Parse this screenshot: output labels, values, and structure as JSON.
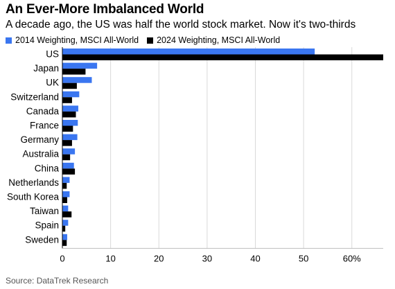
{
  "header": {
    "title": "An Ever-More Imbalanced World",
    "subtitle": "A decade ago, the US was half the world stock market. Now it's two-thirds"
  },
  "footer": {
    "source": "Source: DataTrek Research"
  },
  "colors": {
    "series_2014": "#3a76f0",
    "series_2024": "#000000",
    "grid": "#d9d9d9"
  },
  "chart_data": {
    "type": "bar",
    "orientation": "horizontal",
    "title": "An Ever-More Imbalanced World",
    "subtitle": "A decade ago, the US was half the world stock market. Now it's two-thirds",
    "categories": [
      "US",
      "Japan",
      "UK",
      "Switzerland",
      "Canada",
      "France",
      "Germany",
      "Australia",
      "China",
      "Netherlands",
      "South Korea",
      "Taiwan",
      "Spain",
      "Sweden"
    ],
    "series": [
      {
        "name": "2014 Weighting, MSCI All-World",
        "values": [
          52.3,
          7.2,
          6.1,
          3.5,
          3.3,
          3.2,
          3.1,
          2.6,
          2.4,
          1.5,
          1.5,
          1.2,
          1.2,
          1.0
        ]
      },
      {
        "name": "2024 Weighting, MSCI All-World",
        "values": [
          66.5,
          4.8,
          3.0,
          2.0,
          2.8,
          2.2,
          2.0,
          1.6,
          2.6,
          0.9,
          1.0,
          1.9,
          0.6,
          0.9
        ]
      }
    ],
    "xlim": [
      0,
      66.5
    ],
    "xticks": [
      "0",
      "10",
      "20",
      "30",
      "40",
      "50",
      "60%"
    ],
    "xtick_values": [
      0,
      10,
      20,
      30,
      40,
      50,
      60
    ],
    "grid": "vertical",
    "legend": "top-left",
    "source": "Source: DataTrek Research"
  }
}
